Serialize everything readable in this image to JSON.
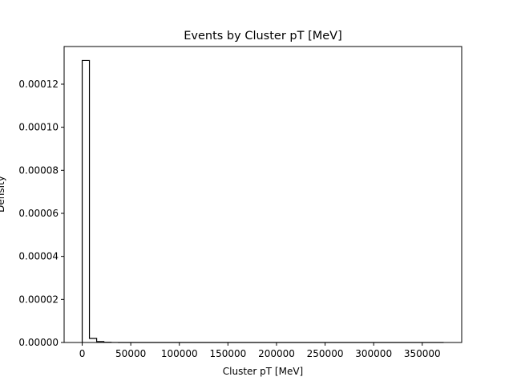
{
  "chart_data": {
    "type": "histogram",
    "title": "Events by Cluster pT [MeV]",
    "xlabel": "Cluster pT [MeV]",
    "ylabel": "Density",
    "xlim": [
      -18600,
      390600
    ],
    "ylim": [
      0,
      0.0001375
    ],
    "x_ticks": [
      0,
      50000,
      100000,
      150000,
      200000,
      250000,
      300000,
      350000
    ],
    "x_tick_labels": [
      "0",
      "50000",
      "100000",
      "150000",
      "200000",
      "250000",
      "300000",
      "350000"
    ],
    "y_ticks": [
      0,
      2e-05,
      4e-05,
      6e-05,
      8e-05,
      0.0001,
      0.00012
    ],
    "y_tick_labels": [
      "0.00000",
      "0.00002",
      "0.00004",
      "0.00006",
      "0.00008",
      "0.00010",
      "0.00012"
    ],
    "bin_edges": [
      0,
      7440,
      14880,
      22320,
      29760,
      37200,
      372000
    ],
    "values": [
      0.000131,
      1.9e-06,
      4.5e-07,
      1e-07,
      3e-08,
      0
    ],
    "histtype": "step",
    "line_color": "#000000",
    "grid": false,
    "legend": false
  }
}
